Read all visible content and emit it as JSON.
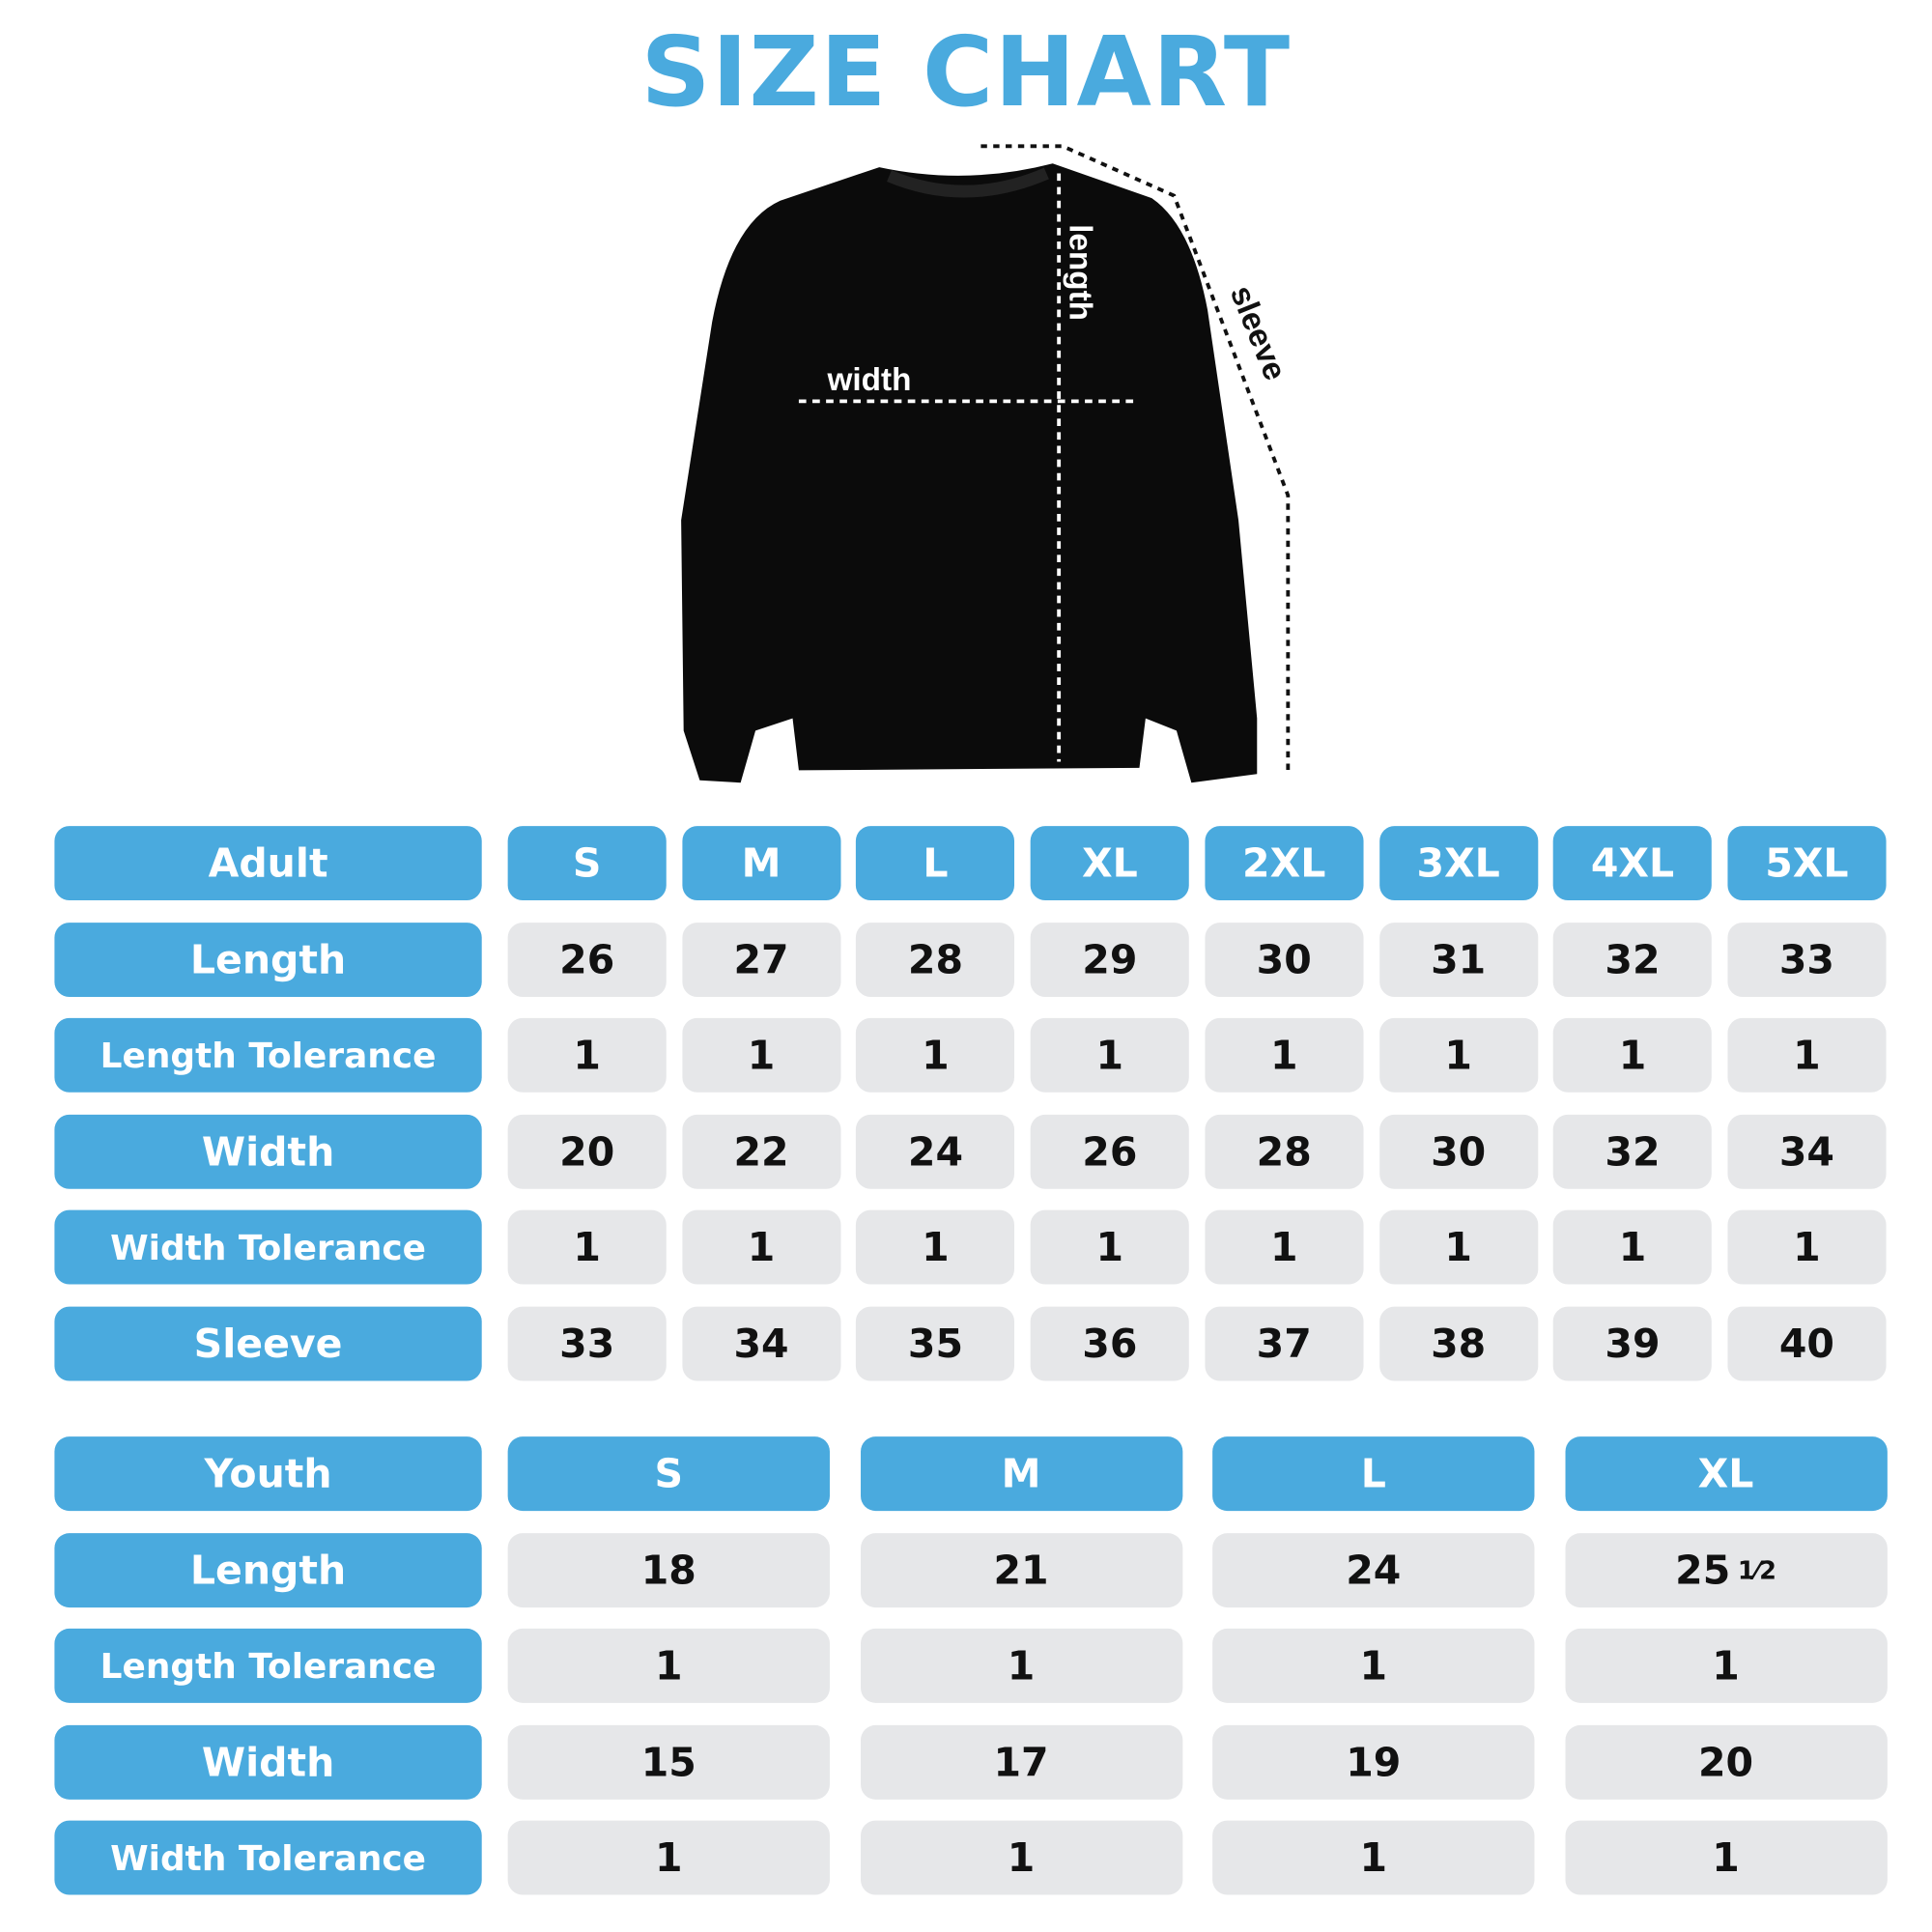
{
  "header": {
    "title": "SIZE CHART"
  },
  "diagram": {
    "length": "length",
    "width": "width",
    "sleeve": "sleeve"
  },
  "adult": {
    "columns": [
      "Adult",
      "S",
      "M",
      "L",
      "XL",
      "2XL",
      "3XL",
      "4XL",
      "5XL"
    ],
    "rows": [
      [
        "Length",
        "26",
        "27",
        "28",
        "29",
        "30",
        "31",
        "32",
        "33"
      ],
      [
        "Length Tolerance",
        "1",
        "1",
        "1",
        "1",
        "1",
        "1",
        "1",
        "1"
      ],
      [
        "Width",
        "20",
        "22",
        "24",
        "26",
        "28",
        "30",
        "32",
        "34"
      ],
      [
        "Width Tolerance",
        "1",
        "1",
        "1",
        "1",
        "1",
        "1",
        "1",
        "1"
      ],
      [
        "Sleeve",
        "33",
        "34",
        "35",
        "36",
        "37",
        "38",
        "39",
        "40"
      ]
    ]
  },
  "youth": {
    "columns": [
      "Youth",
      "S",
      "M",
      "L",
      "XL"
    ],
    "rows": [
      [
        "Length",
        "18",
        "21",
        "24",
        {
          "whole": "25",
          "numerator": "1",
          "denominator": "2"
        }
      ],
      [
        "Length Tolerance",
        "1",
        "1",
        "1",
        "1"
      ],
      [
        "Width",
        "15",
        "17",
        "19",
        "20"
      ],
      [
        "Width Tolerance",
        "1",
        "1",
        "1",
        "1"
      ]
    ]
  }
}
